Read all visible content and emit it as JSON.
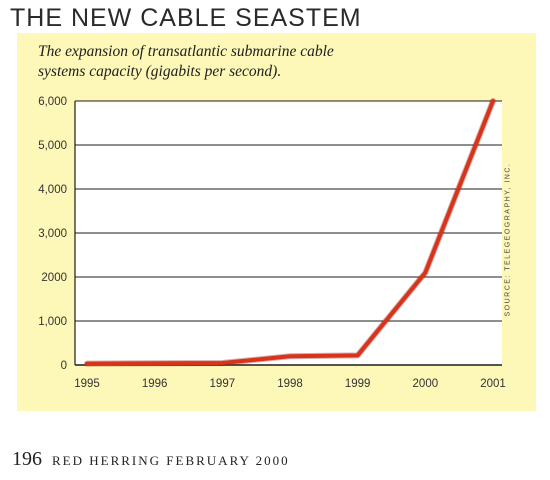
{
  "header": {
    "title": "THE NEW CABLE SEASTEM"
  },
  "footer": {
    "page_number": "196",
    "publication": "RED HERRING FEBRUARY 2000"
  },
  "source_note": "SOURCE: TELEGEOGRAPHY, INC.",
  "colors": {
    "panel": "#fdf7b8",
    "line": "#d8331b",
    "grid": "#1c1c1c"
  },
  "chart_data": {
    "type": "line",
    "title": "",
    "subtitle": "The expansion of transatlantic submarine cable systems capacity (gigabits per second).",
    "xlabel": "",
    "ylabel": "",
    "categories": [
      "1995",
      "1996",
      "1997",
      "1998",
      "1999",
      "2000",
      "2001"
    ],
    "y_tick_labels": [
      "0",
      "1,000",
      "2000",
      "3,000",
      "4,000",
      "5,000",
      "6,000"
    ],
    "y_tick_values": [
      0,
      1000,
      2000,
      3000,
      4000,
      5000,
      6000
    ],
    "ylim": [
      0,
      6000
    ],
    "grid": true,
    "series": [
      {
        "values": [
          30,
          40,
          45,
          200,
          220,
          2100,
          6000
        ]
      }
    ]
  }
}
